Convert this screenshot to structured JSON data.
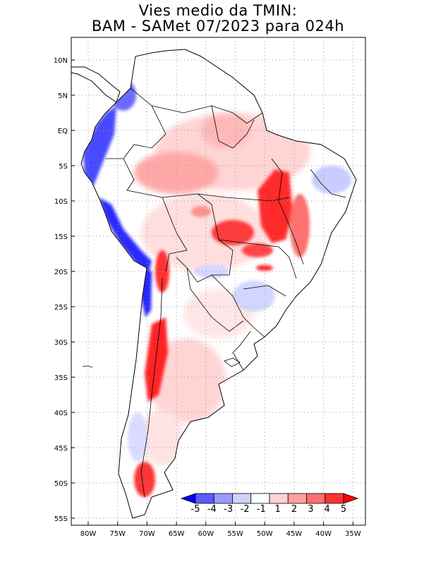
{
  "title": {
    "line1": "Vies medio da TMIN:",
    "line2": "BAM - SAMet 07/2023  para 024h"
  },
  "map": {
    "region": "South America",
    "lat_labels": [
      "10N",
      "5N",
      "EQ",
      "5S",
      "10S",
      "15S",
      "20S",
      "25S",
      "30S",
      "35S",
      "40S",
      "45S",
      "50S",
      "55S"
    ],
    "lon_labels": [
      "80W",
      "75W",
      "70W",
      "65W",
      "60W",
      "55W",
      "50W",
      "45W",
      "40W",
      "35W"
    ],
    "extent": {
      "lon_min": -83,
      "lon_max": -34,
      "lat_min": -56,
      "lat_max": 13
    }
  },
  "colorbar": {
    "labels": [
      "-5",
      "-4",
      "-3",
      "-2",
      "-1",
      "1",
      "2",
      "3",
      "4",
      "5"
    ],
    "colors": [
      "#0000ff",
      "#5a5aff",
      "#9b9bff",
      "#cfd2ff",
      "#ffffff",
      "#ffd2d2",
      "#ffa0a0",
      "#ff6e6e",
      "#ff3232",
      "#ff0000"
    ]
  },
  "colors": {
    "strong_warm": "#ff2a2a",
    "warm": "#ff9a9a",
    "light_warm": "#ffd4d4",
    "strong_cold": "#1a1aff",
    "cold": "#8f95ff",
    "light_cold": "#d6d9ff"
  }
}
